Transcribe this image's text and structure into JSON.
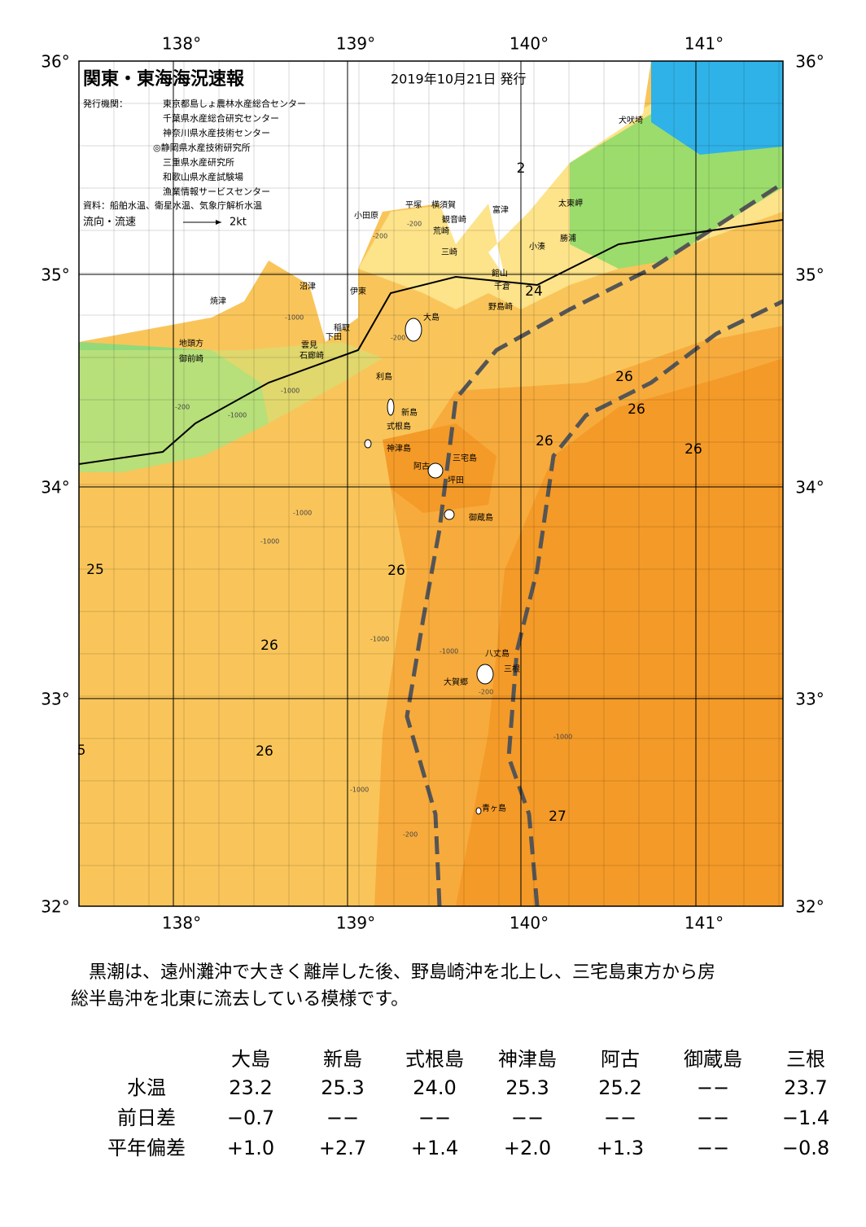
{
  "header": {
    "title": "関東・東海海況速報",
    "date": "2019年10月21日 発行",
    "issuer_label": "発行機関：",
    "issuers": [
      "東京都島しょ農林水産総合センター",
      "千葉県水産総合研究センター",
      "神奈川県水産技術センター",
      "◎静岡県水産技術研究所",
      "三重県水産研究所",
      "和歌山県水産試験場",
      "漁業情報サービスセンター"
    ],
    "source": "資料：船舶水温、衛星水温、気象庁解析水温",
    "flow_label": "流向・流速",
    "flow_scale": "2kt"
  },
  "map": {
    "lat_labels": [
      "36°",
      "35°",
      "34°",
      "33°",
      "32°"
    ],
    "lon_labels": [
      "138°",
      "139°",
      "140°",
      "141°"
    ],
    "places": [
      "犬吠埼",
      "太東岬",
      "勝浦",
      "小湊",
      "富津",
      "横須賀",
      "平塚",
      "観音崎",
      "荒崎",
      "三崎",
      "館山",
      "千倉",
      "野島崎",
      "小田原",
      "沼津",
      "伊東",
      "焼津",
      "大島",
      "稲取",
      "下田",
      "雲見",
      "石廊崎",
      "地頭方",
      "御前崎",
      "利島",
      "新島",
      "式根島",
      "神津島",
      "三宅島",
      "阿古",
      "坪田",
      "御蔵島",
      "八丈島",
      "三根",
      "大賀郷",
      "青ヶ島"
    ],
    "temperature_labels": [
      "24",
      "26",
      "26",
      "26",
      "26",
      "25",
      "26",
      "26",
      "26",
      "27",
      "2",
      "5"
    ],
    "depth_labels": [
      "-200",
      "-200",
      "-1000",
      "-200",
      "-1000",
      "-1000",
      "-200",
      "-1000",
      "-1000",
      "-1000",
      "-1000",
      "-200",
      "-1000",
      "-1000",
      "-200"
    ]
  },
  "description": [
    "　黒潮は、遠州灘沖で大きく離岸した後、野島崎沖を北上し、三宅島東方から房",
    "総半島沖を北東に流去している模様です。"
  ],
  "table": {
    "header": [
      "大島",
      "新島",
      "式根島",
      "神津島",
      "阿古",
      "御蔵島",
      "三根"
    ],
    "rows": [
      [
        "水温",
        "23.2",
        "25.3",
        "24.0",
        "25.3",
        "25.2",
        "−−",
        "23.7"
      ],
      [
        "前日差",
        "−0.7",
        "−−",
        "−−",
        "−−",
        "−−",
        "−−",
        "−1.4"
      ],
      [
        "平年偏差",
        "+1.0",
        "+2.7",
        "+1.4",
        "+2.0",
        "+1.3",
        "−−",
        "−0.8"
      ]
    ]
  }
}
